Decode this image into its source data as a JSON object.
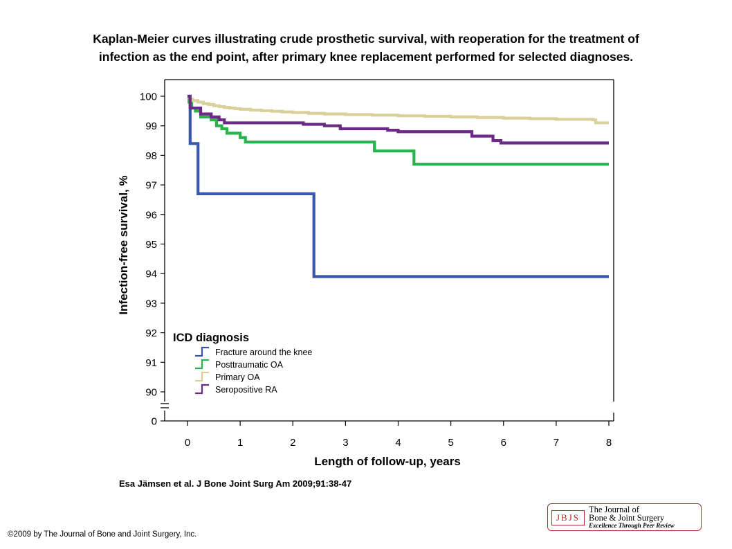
{
  "title_lines": [
    "Kaplan-Meier curves illustrating crude prosthetic survival, with reoperation for the treatment of",
    "infection as the end point, after primary knee replacement performed for selected diagnoses."
  ],
  "citation": "Esa Jämsen et al. J Bone Joint Surg Am 2009;91:38-47",
  "copyright": "©2009 by The Journal of Bone and Joint Surgery, Inc.",
  "logo": {
    "abbr": "JBJS",
    "line1": "The Journal of",
    "line2": "Bone & Joint Surgery",
    "line3": "Excellence Through Peer Review",
    "color": "#b22a2a"
  },
  "chart_data": {
    "type": "line",
    "step": true,
    "title": "",
    "xlabel": "Length of follow-up, years",
    "ylabel": "Infection-free survival, %",
    "xlim": [
      0,
      8
    ],
    "ylim": [
      90,
      100
    ],
    "y_axis_break": true,
    "x_ticks": [
      0,
      1,
      2,
      3,
      4,
      5,
      6,
      7,
      8
    ],
    "y_ticks": [
      90,
      91,
      92,
      93,
      94,
      95,
      96,
      97,
      98,
      99,
      100
    ],
    "y_extra_tick": 0,
    "grid": false,
    "legend": {
      "title": "ICD diagnosis",
      "position": "bottom-left"
    },
    "series": [
      {
        "name": "Fracture around the knee",
        "color": "#3a55b0",
        "points": [
          [
            0,
            100
          ],
          [
            0.05,
            98.4
          ],
          [
            0.2,
            96.7
          ],
          [
            2.4,
            93.9
          ],
          [
            8,
            93.9
          ]
        ]
      },
      {
        "name": "Posttraumatic OA",
        "color": "#2bb24c",
        "points": [
          [
            0,
            100
          ],
          [
            0.03,
            99.8
          ],
          [
            0.08,
            99.6
          ],
          [
            0.15,
            99.5
          ],
          [
            0.25,
            99.3
          ],
          [
            0.45,
            99.2
          ],
          [
            0.55,
            99.0
          ],
          [
            0.65,
            98.9
          ],
          [
            0.75,
            98.75
          ],
          [
            1.0,
            98.6
          ],
          [
            1.1,
            98.45
          ],
          [
            3.55,
            98.15
          ],
          [
            4.3,
            97.7
          ],
          [
            8,
            97.7
          ]
        ]
      },
      {
        "name": "Primary OA",
        "color": "#d9d09a",
        "points": [
          [
            0,
            100
          ],
          [
            0.05,
            99.9
          ],
          [
            0.1,
            99.85
          ],
          [
            0.2,
            99.8
          ],
          [
            0.3,
            99.75
          ],
          [
            0.4,
            99.72
          ],
          [
            0.5,
            99.68
          ],
          [
            0.6,
            99.65
          ],
          [
            0.7,
            99.62
          ],
          [
            0.8,
            99.6
          ],
          [
            0.9,
            99.58
          ],
          [
            1.0,
            99.56
          ],
          [
            1.2,
            99.53
          ],
          [
            1.4,
            99.51
          ],
          [
            1.6,
            99.49
          ],
          [
            1.8,
            99.47
          ],
          [
            2.0,
            99.45
          ],
          [
            2.3,
            99.42
          ],
          [
            2.6,
            99.4
          ],
          [
            3.0,
            99.38
          ],
          [
            3.5,
            99.36
          ],
          [
            4.0,
            99.34
          ],
          [
            4.5,
            99.32
          ],
          [
            5.0,
            99.3
          ],
          [
            5.5,
            99.28
          ],
          [
            6.0,
            99.26
          ],
          [
            6.5,
            99.24
          ],
          [
            7.0,
            99.22
          ],
          [
            7.7,
            99.2
          ],
          [
            7.75,
            99.1
          ],
          [
            8,
            99.1
          ]
        ]
      },
      {
        "name": "Seropositive RA",
        "color": "#6b2a85",
        "points": [
          [
            0,
            100
          ],
          [
            0.05,
            99.6
          ],
          [
            0.25,
            99.4
          ],
          [
            0.45,
            99.3
          ],
          [
            0.6,
            99.2
          ],
          [
            0.7,
            99.1
          ],
          [
            1.0,
            99.1
          ],
          [
            2.2,
            99.05
          ],
          [
            2.6,
            99.0
          ],
          [
            2.9,
            98.9
          ],
          [
            3.8,
            98.85
          ],
          [
            4.0,
            98.8
          ],
          [
            5.4,
            98.65
          ],
          [
            5.8,
            98.5
          ],
          [
            5.95,
            98.42
          ],
          [
            8,
            98.42
          ]
        ]
      }
    ]
  }
}
